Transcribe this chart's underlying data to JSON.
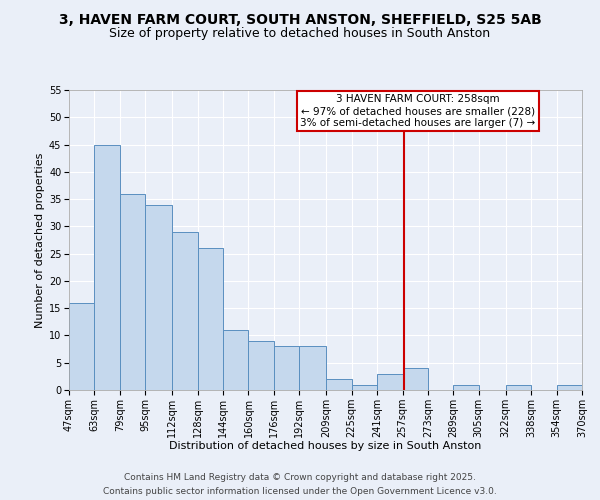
{
  "title": "3, HAVEN FARM COURT, SOUTH ANSTON, SHEFFIELD, S25 5AB",
  "subtitle": "Size of property relative to detached houses in South Anston",
  "xlabel": "Distribution of detached houses by size in South Anston",
  "ylabel": "Number of detached properties",
  "bin_edges": [
    47,
    63,
    79,
    95,
    112,
    128,
    144,
    160,
    176,
    192,
    209,
    225,
    241,
    257,
    273,
    289,
    305,
    322,
    338,
    354,
    370
  ],
  "counts": [
    16,
    45,
    36,
    34,
    29,
    26,
    11,
    9,
    8,
    8,
    2,
    1,
    3,
    4,
    0,
    1,
    0,
    1,
    0,
    1
  ],
  "bar_color": "#c5d8ed",
  "bar_edge_color": "#5a8fc0",
  "vline_x": 258,
  "vline_color": "#cc0000",
  "annotation_lines": [
    "3 HAVEN FARM COURT: 258sqm",
    "← 97% of detached houses are smaller (228)",
    "3% of semi-detached houses are larger (7) →"
  ],
  "annotation_box_color": "#cc0000",
  "ylim": [
    0,
    55
  ],
  "yticks": [
    0,
    5,
    10,
    15,
    20,
    25,
    30,
    35,
    40,
    45,
    50,
    55
  ],
  "tick_labels": [
    "47sqm",
    "63sqm",
    "79sqm",
    "95sqm",
    "112sqm",
    "128sqm",
    "144sqm",
    "160sqm",
    "176sqm",
    "192sqm",
    "209sqm",
    "225sqm",
    "241sqm",
    "257sqm",
    "273sqm",
    "289sqm",
    "305sqm",
    "322sqm",
    "338sqm",
    "354sqm",
    "370sqm"
  ],
  "footnote1": "Contains HM Land Registry data © Crown copyright and database right 2025.",
  "footnote2": "Contains public sector information licensed under the Open Government Licence v3.0.",
  "bg_color": "#eaeff8",
  "grid_color": "#ffffff",
  "title_fontsize": 10,
  "subtitle_fontsize": 9,
  "axis_label_fontsize": 8,
  "tick_fontsize": 7,
  "annotation_fontsize": 7.5,
  "footnote_fontsize": 6.5
}
